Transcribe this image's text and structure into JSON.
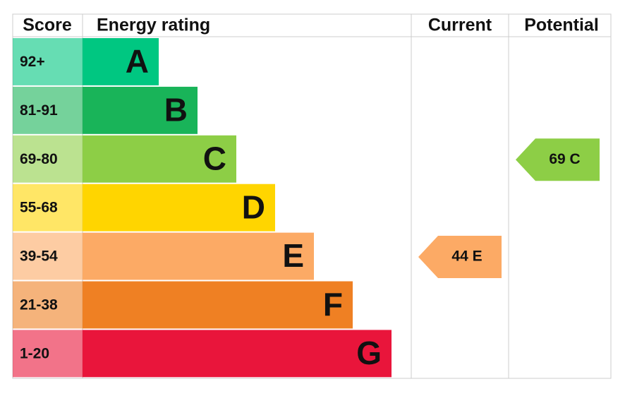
{
  "chart_data": {
    "type": "epc",
    "headers": [
      "Score",
      "Energy rating",
      "Current",
      "Potential"
    ],
    "bands": [
      {
        "score": "92+",
        "letter": "A",
        "color": "#00c781"
      },
      {
        "score": "81-91",
        "letter": "B",
        "color": "#19b459"
      },
      {
        "score": "69-80",
        "letter": "C",
        "color": "#8dce46"
      },
      {
        "score": "55-68",
        "letter": "D",
        "color": "#ffd500"
      },
      {
        "score": "39-54",
        "letter": "E",
        "color": "#fcaa65"
      },
      {
        "score": "21-38",
        "letter": "F",
        "color": "#ef8023"
      },
      {
        "score": "1-20",
        "letter": "G",
        "color": "#e9153b"
      }
    ],
    "current": {
      "value": 44,
      "label": "44 E",
      "color": "#fcaa65"
    },
    "potential": {
      "value": 69,
      "label": "69 C",
      "color": "#8dce46"
    }
  }
}
